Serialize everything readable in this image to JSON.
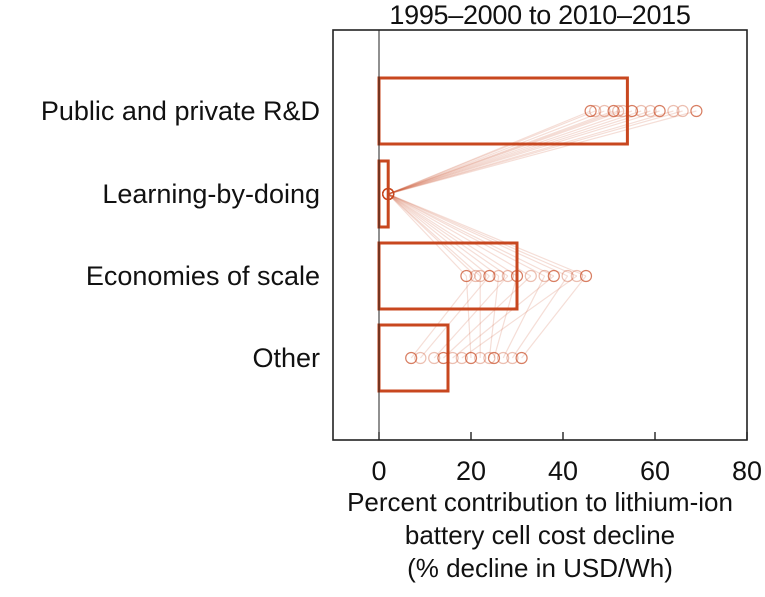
{
  "chart_data": {
    "type": "bar",
    "orientation": "horizontal",
    "title": "1995–2000 to 2010–2015",
    "categories": [
      "Public and private R&D",
      "Learning-by-doing",
      "Economies of scale",
      "Other"
    ],
    "values": [
      54,
      2,
      30,
      15
    ],
    "xlabel_lines": [
      "Percent contribution to lithium-ion",
      "battery cell cost decline",
      "(% decline in USD/Wh)"
    ],
    "xlim": [
      -10,
      80
    ],
    "xticks": [
      0,
      20,
      40,
      60,
      80
    ],
    "grid": false,
    "color": "#c8471f",
    "sample_points": {
      "Public and private R&D": [
        46,
        47,
        49,
        51,
        52,
        53,
        55,
        57,
        59,
        61,
        64,
        66,
        69
      ],
      "Learning-by-doing": [
        2,
        2,
        2,
        2,
        2,
        2,
        2,
        2,
        2,
        2,
        2,
        2,
        2
      ],
      "Economies of scale": [
        19,
        21,
        22,
        24,
        26,
        28,
        30,
        33,
        36,
        38,
        41,
        43,
        45
      ],
      "Other": [
        7,
        9,
        12,
        14,
        16,
        18,
        20,
        22,
        24,
        25,
        27,
        29,
        31
      ]
    }
  }
}
